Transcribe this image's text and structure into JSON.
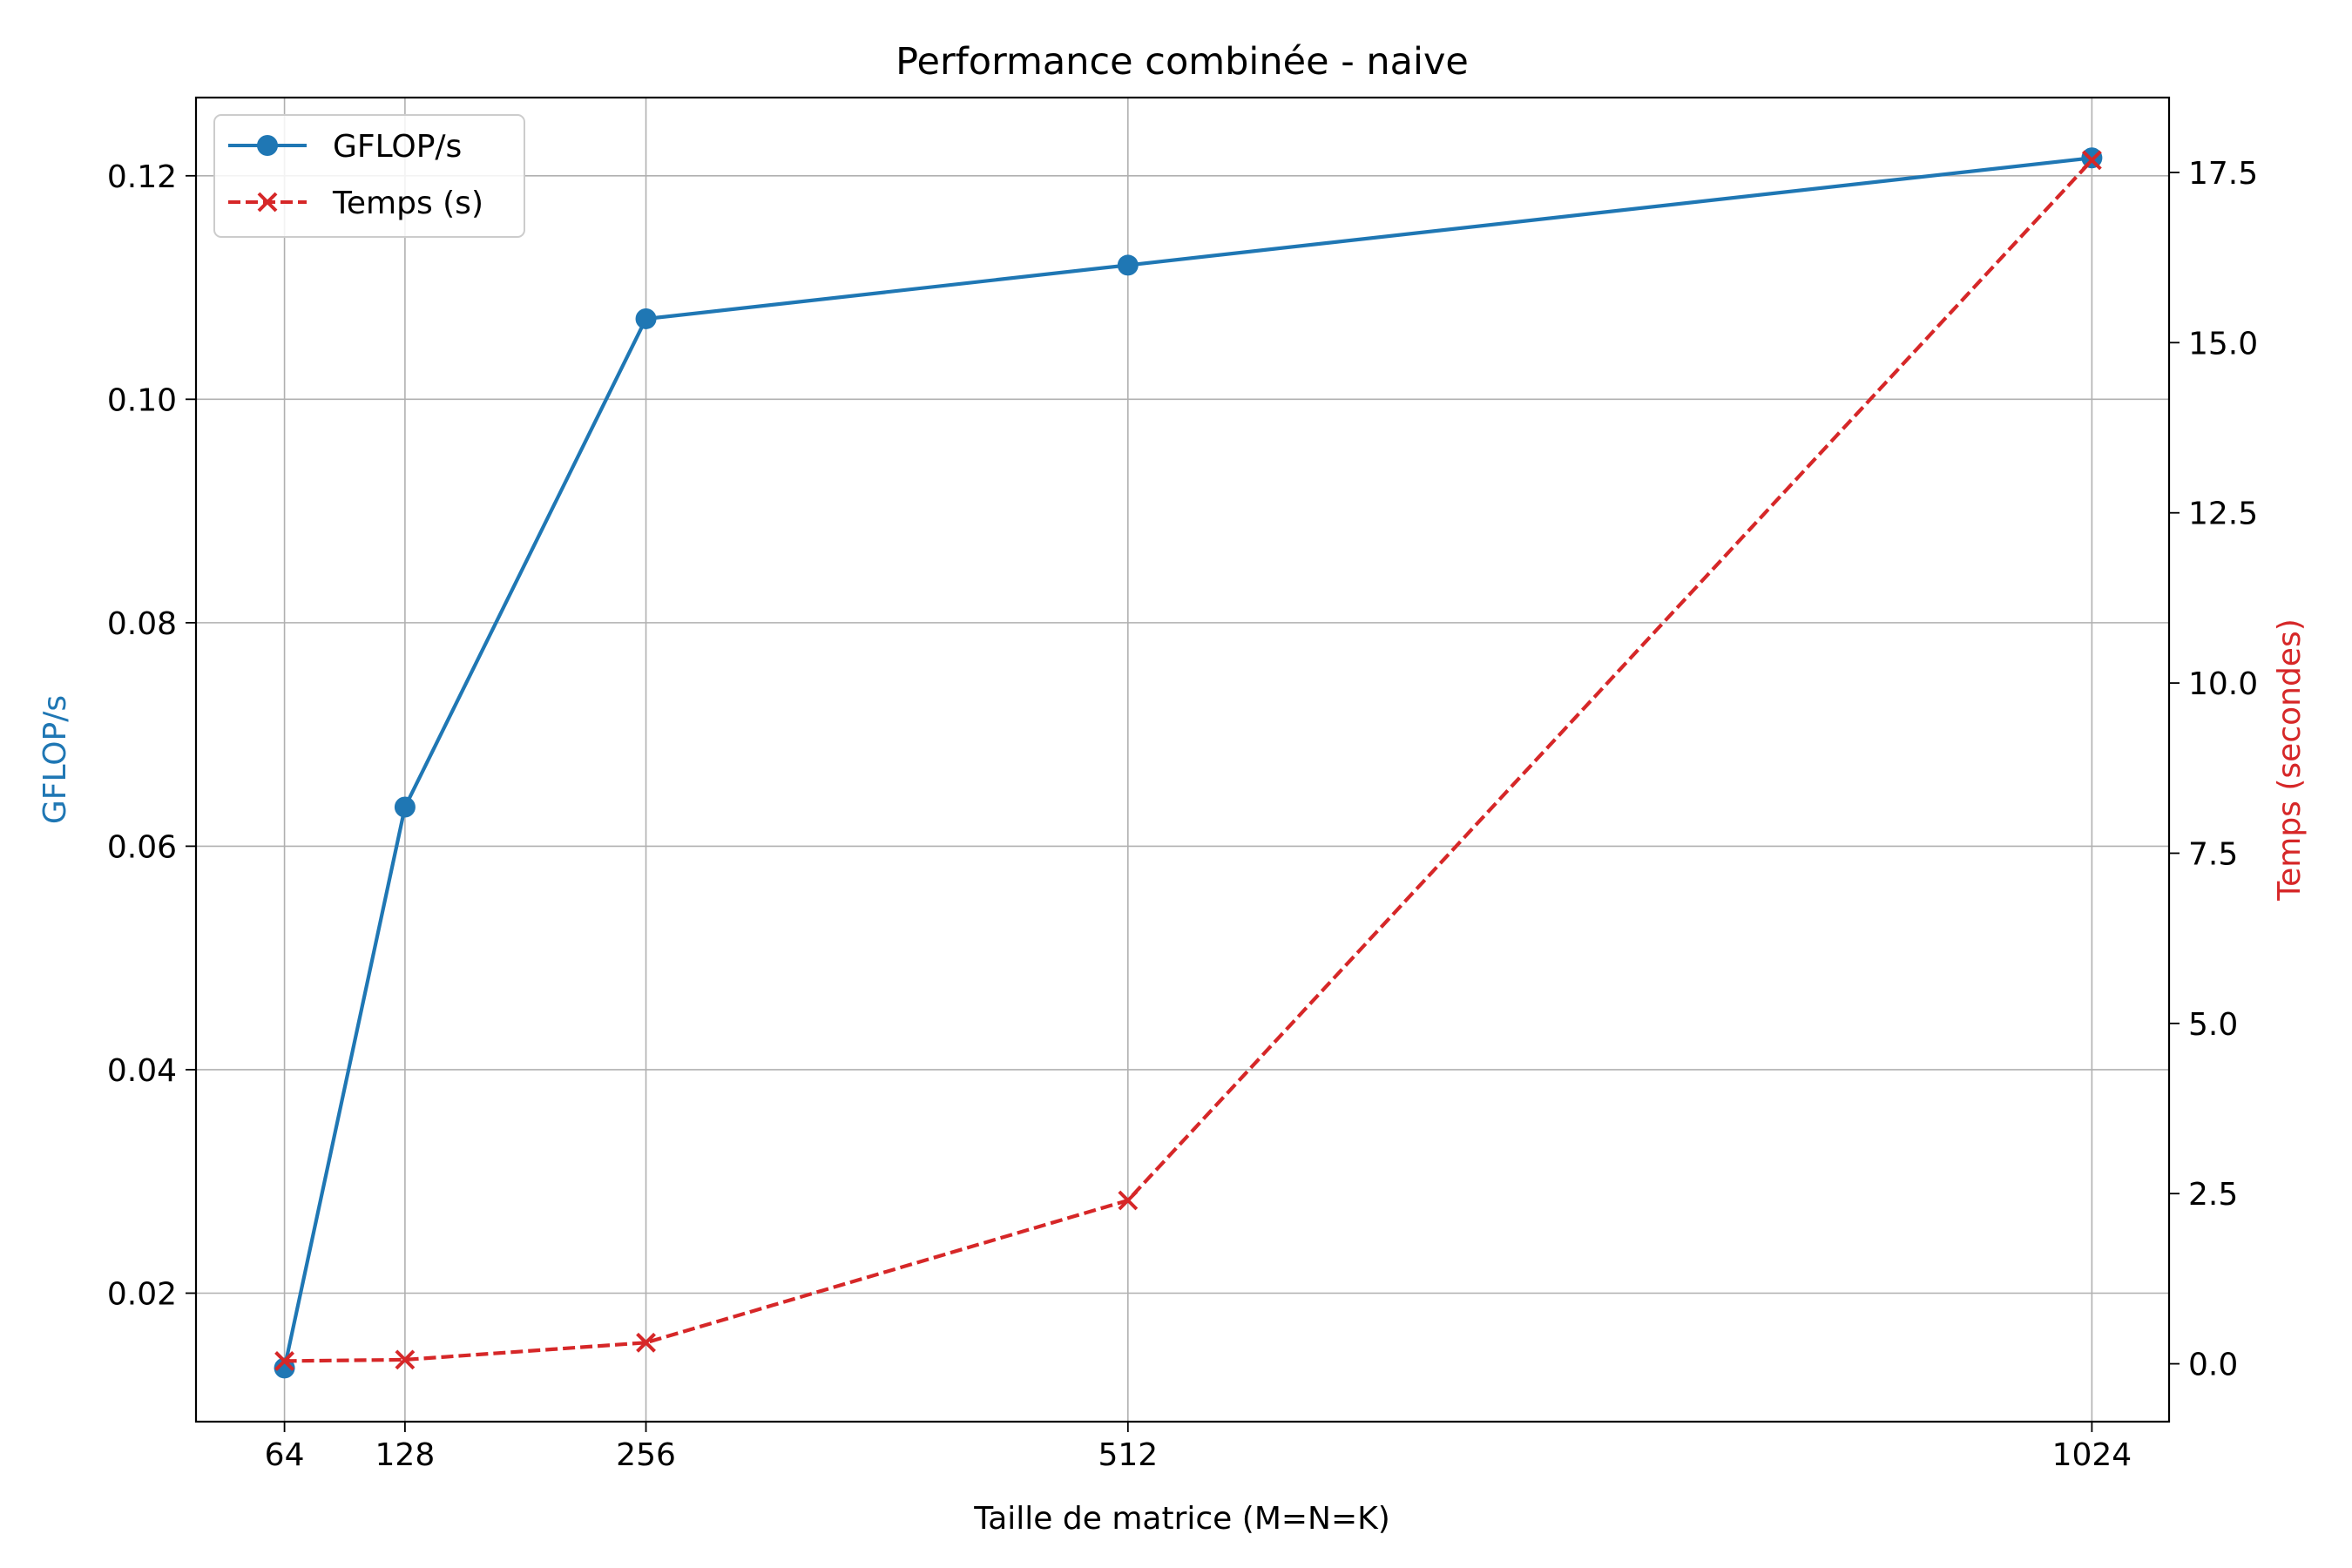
{
  "chart_data": {
    "type": "line",
    "title": "Performance combinée - naive",
    "xlabel": "Taille de matrice (M=N=K)",
    "ylabel_left": "GFLOP/s",
    "ylabel_right": "Temps (secondes)",
    "x": [
      64,
      128,
      256,
      512,
      1024
    ],
    "x_ticks": [
      "64",
      "128",
      "256",
      "512",
      "1024"
    ],
    "xlim": [
      17,
      1065
    ],
    "ylim_left": [
      0.0085,
      0.127
    ],
    "ylim_right": [
      -0.85,
      18.6
    ],
    "y_ticks_left": [
      "0.02",
      "0.04",
      "0.06",
      "0.08",
      "0.10",
      "0.12"
    ],
    "y_ticks_right": [
      "0.0",
      "2.5",
      "5.0",
      "7.5",
      "10.0",
      "12.5",
      "15.0",
      "17.5"
    ],
    "grid": true,
    "legend_position": "top-left",
    "series": [
      {
        "name": "GFLOP/s",
        "axis": "left",
        "style": "solid",
        "marker": "circle",
        "color": "#1f77b4",
        "values": [
          0.0133,
          0.0635,
          0.1072,
          0.112,
          0.1216
        ]
      },
      {
        "name": "Temps (s)",
        "axis": "right",
        "style": "dashed",
        "marker": "x",
        "color": "#d62728",
        "values": [
          0.04,
          0.06,
          0.31,
          2.4,
          17.68
        ]
      }
    ]
  }
}
